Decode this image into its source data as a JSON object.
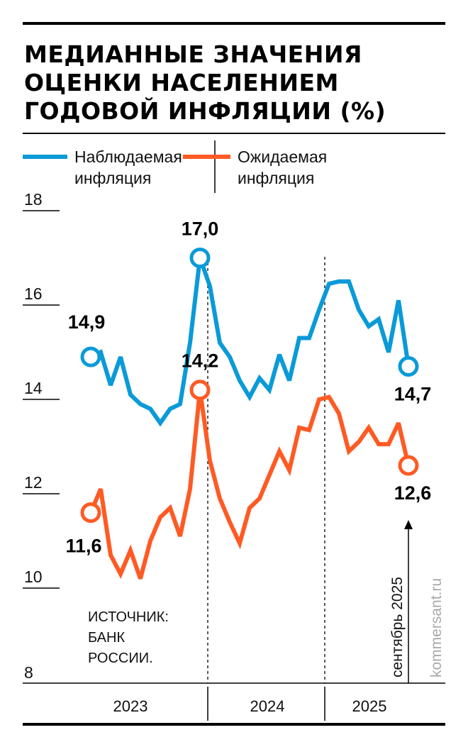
{
  "chart_data": {
    "type": "line",
    "title_lines": [
      "МЕДИАННЫЕ ЗНАЧЕНИЯ",
      "ОЦЕНКИ НАСЕЛЕНИЕМ",
      "ГОДОВОЙ ИНФЛЯЦИИ (%)"
    ],
    "legend": [
      {
        "line1": "Наблюдаемая",
        "line2": "инфляция"
      },
      {
        "line1": "Ожидаемая",
        "line2": "инфляция"
      }
    ],
    "x_start": "2023-01",
    "x_end": "2025-09",
    "year_labels": [
      "2023",
      "2024",
      "2025"
    ],
    "ylim": [
      8,
      18
    ],
    "yticks": [
      "8",
      "10",
      "12",
      "14",
      "16",
      "18"
    ],
    "series": [
      {
        "name": "Наблюдаемая инфляция",
        "color": "#0a9ad8",
        "values": [
          14.9,
          15.0,
          14.3,
          14.9,
          14.1,
          13.9,
          13.8,
          13.5,
          13.8,
          13.9,
          15.2,
          17.0,
          16.4,
          15.2,
          14.9,
          14.4,
          14.05,
          14.45,
          14.2,
          14.95,
          14.4,
          15.3,
          15.3,
          15.9,
          16.45,
          16.5,
          16.5,
          15.9,
          15.55,
          15.7,
          15.0,
          16.1,
          14.7
        ]
      },
      {
        "name": "Ожидаемая инфляция",
        "color": "#ff5a24",
        "values": [
          11.6,
          12.1,
          10.7,
          10.3,
          10.8,
          10.2,
          11.0,
          11.5,
          11.7,
          11.1,
          12.1,
          14.2,
          12.7,
          11.9,
          11.4,
          10.95,
          11.7,
          11.9,
          12.4,
          12.9,
          12.5,
          13.4,
          13.35,
          14.0,
          14.05,
          13.7,
          12.9,
          13.1,
          13.4,
          13.05,
          13.05,
          13.5,
          12.6
        ]
      }
    ],
    "annotations": [
      {
        "series": 0,
        "index": 0,
        "label": "14,9"
      },
      {
        "series": 0,
        "index": 11,
        "label": "17,0"
      },
      {
        "series": 0,
        "index": 32,
        "label": "14,7"
      },
      {
        "series": 1,
        "index": 0,
        "label": "11,6"
      },
      {
        "series": 1,
        "index": 11,
        "label": "14,2"
      },
      {
        "series": 1,
        "index": 32,
        "label": "12,6"
      }
    ],
    "source_lines": [
      "ИСТОЧНИК:",
      "БАНК",
      "РОССИИ."
    ],
    "marker_note": "сентябрь 2025",
    "brand": "kommersant.ru"
  }
}
